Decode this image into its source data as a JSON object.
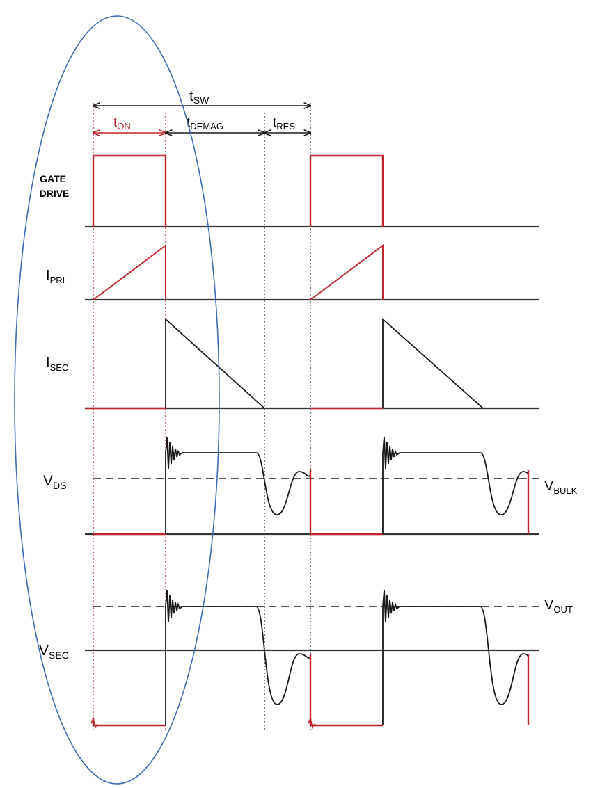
{
  "colors": {
    "red": "#c0262e",
    "black": "#1a1a1a",
    "axis": "#333333",
    "blue": "#3e6bb5"
  },
  "timing": {
    "t_sw": {
      "main": "t",
      "sub": "SW"
    },
    "t_on": {
      "main": "t",
      "sub": "ON"
    },
    "t_demag": {
      "main": "t",
      "sub": "DEMAG"
    },
    "t_res": {
      "main": "t",
      "sub": "RES"
    }
  },
  "signals": {
    "gate_drive": {
      "line1": "GATE",
      "line2": "DRIVE"
    },
    "i_pri": {
      "main": "I",
      "sub": "PRI"
    },
    "i_sec": {
      "main": "I",
      "sub": "SEC"
    },
    "v_ds": {
      "main": "V",
      "sub": "DS"
    },
    "v_sec": {
      "main": "V",
      "sub": "SEC"
    }
  },
  "levels": {
    "v_bulk": {
      "main": "V",
      "sub": "BULK"
    },
    "v_out": {
      "main": "V",
      "sub": "OUT"
    }
  }
}
